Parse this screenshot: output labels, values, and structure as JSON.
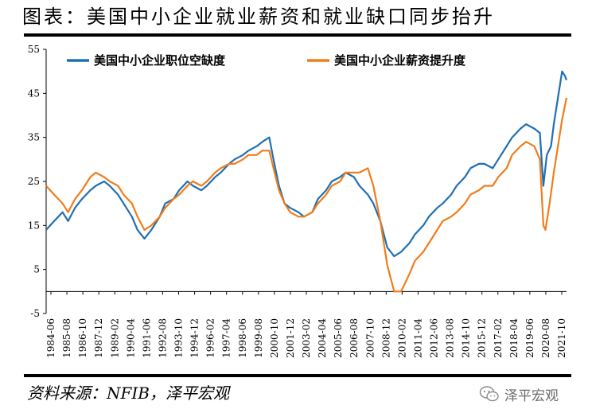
{
  "title": "图表：美国中小企业就业薪资和就业缺口同步抬升",
  "source": "资料来源：NFIB，泽平宏观",
  "watermark": {
    "text": "泽平宏观",
    "icon": "wechat-icon"
  },
  "colors": {
    "blue": "#1f6fb4",
    "orange": "#f07d1a"
  },
  "chart_data": {
    "type": "line",
    "title": "",
    "xlabel": "",
    "ylabel": "",
    "ylim": [
      -5,
      55
    ],
    "yticks": [
      -5,
      5,
      15,
      25,
      35,
      45,
      55
    ],
    "xlim": [
      1984.42,
      2021.92
    ],
    "grid": false,
    "legend": "top",
    "xtick_labels": [
      "1984-06",
      "1985-08",
      "1986-10",
      "1987-12",
      "1989-02",
      "1990-04",
      "1991-06",
      "1992-08",
      "1993-10",
      "1994-12",
      "1996-02",
      "1997-04",
      "1998-06",
      "1999-08",
      "2000-10",
      "2001-12",
      "2003-02",
      "2004-04",
      "2005-06",
      "2006-08",
      "2007-10",
      "2008-12",
      "2010-02",
      "2011-04",
      "2012-06",
      "2013-08",
      "2014-10",
      "2015-12",
      "2017-02",
      "2018-04",
      "2019-06",
      "2020-08",
      "2021-10"
    ],
    "series": [
      {
        "name": "美国中小企业职位空缺度",
        "color": "#1f6fb4",
        "points": [
          [
            1984.42,
            14
          ],
          [
            1985.0,
            16
          ],
          [
            1985.6,
            18
          ],
          [
            1986.0,
            16
          ],
          [
            1986.5,
            19
          ],
          [
            1987.0,
            21
          ],
          [
            1987.6,
            23
          ],
          [
            1988.0,
            24
          ],
          [
            1988.6,
            25
          ],
          [
            1989.0,
            24
          ],
          [
            1989.6,
            22
          ],
          [
            1990.0,
            20
          ],
          [
            1990.6,
            17
          ],
          [
            1991.0,
            14
          ],
          [
            1991.5,
            12
          ],
          [
            1992.0,
            14
          ],
          [
            1992.6,
            17
          ],
          [
            1993.0,
            20
          ],
          [
            1993.6,
            21
          ],
          [
            1994.0,
            23
          ],
          [
            1994.6,
            25
          ],
          [
            1995.0,
            24
          ],
          [
            1995.6,
            23
          ],
          [
            1996.0,
            24
          ],
          [
            1996.6,
            26
          ],
          [
            1997.0,
            27
          ],
          [
            1997.6,
            29
          ],
          [
            1998.0,
            30
          ],
          [
            1998.6,
            31
          ],
          [
            1999.0,
            32
          ],
          [
            1999.6,
            33
          ],
          [
            2000.0,
            34
          ],
          [
            2000.5,
            35
          ],
          [
            2000.8,
            30
          ],
          [
            2001.2,
            24
          ],
          [
            2001.6,
            20
          ],
          [
            2002.0,
            19
          ],
          [
            2002.6,
            18
          ],
          [
            2003.0,
            17
          ],
          [
            2003.6,
            18
          ],
          [
            2004.0,
            21
          ],
          [
            2004.6,
            23
          ],
          [
            2005.0,
            25
          ],
          [
            2005.6,
            26
          ],
          [
            2006.0,
            27
          ],
          [
            2006.6,
            26
          ],
          [
            2007.0,
            24
          ],
          [
            2007.6,
            22
          ],
          [
            2008.0,
            20
          ],
          [
            2008.5,
            16
          ],
          [
            2009.0,
            10
          ],
          [
            2009.5,
            8
          ],
          [
            2010.0,
            9
          ],
          [
            2010.6,
            11
          ],
          [
            2011.0,
            13
          ],
          [
            2011.6,
            15
          ],
          [
            2012.0,
            17
          ],
          [
            2012.6,
            19
          ],
          [
            2013.0,
            20
          ],
          [
            2013.6,
            22
          ],
          [
            2014.0,
            24
          ],
          [
            2014.6,
            26
          ],
          [
            2015.0,
            28
          ],
          [
            2015.6,
            29
          ],
          [
            2016.0,
            29
          ],
          [
            2016.6,
            28
          ],
          [
            2017.0,
            30
          ],
          [
            2017.6,
            33
          ],
          [
            2018.0,
            35
          ],
          [
            2018.6,
            37
          ],
          [
            2019.0,
            38
          ],
          [
            2019.6,
            37
          ],
          [
            2020.0,
            36
          ],
          [
            2020.25,
            24
          ],
          [
            2020.5,
            31
          ],
          [
            2020.8,
            33
          ],
          [
            2021.0,
            38
          ],
          [
            2021.3,
            44
          ],
          [
            2021.6,
            50
          ],
          [
            2021.8,
            49
          ],
          [
            2021.92,
            48
          ]
        ]
      },
      {
        "name": "美国中小企业薪资提升度",
        "color": "#f07d1a",
        "points": [
          [
            1984.42,
            24
          ],
          [
            1985.0,
            22
          ],
          [
            1985.6,
            20
          ],
          [
            1986.0,
            18
          ],
          [
            1986.5,
            21
          ],
          [
            1987.0,
            23
          ],
          [
            1987.6,
            26
          ],
          [
            1988.0,
            27
          ],
          [
            1988.6,
            26
          ],
          [
            1989.0,
            25
          ],
          [
            1989.6,
            24
          ],
          [
            1990.0,
            22
          ],
          [
            1990.6,
            20
          ],
          [
            1991.0,
            17
          ],
          [
            1991.5,
            14
          ],
          [
            1992.0,
            15
          ],
          [
            1992.6,
            17
          ],
          [
            1993.0,
            19
          ],
          [
            1993.6,
            21
          ],
          [
            1994.0,
            22
          ],
          [
            1994.6,
            24
          ],
          [
            1995.0,
            25
          ],
          [
            1995.6,
            24
          ],
          [
            1996.0,
            25
          ],
          [
            1996.6,
            27
          ],
          [
            1997.0,
            28
          ],
          [
            1997.6,
            29
          ],
          [
            1998.0,
            29
          ],
          [
            1998.6,
            30
          ],
          [
            1999.0,
            31
          ],
          [
            1999.6,
            31
          ],
          [
            2000.0,
            32
          ],
          [
            2000.5,
            32
          ],
          [
            2000.8,
            28
          ],
          [
            2001.2,
            23
          ],
          [
            2001.6,
            20
          ],
          [
            2002.0,
            18
          ],
          [
            2002.6,
            17
          ],
          [
            2003.0,
            17
          ],
          [
            2003.6,
            18
          ],
          [
            2004.0,
            20
          ],
          [
            2004.6,
            22
          ],
          [
            2005.0,
            24
          ],
          [
            2005.6,
            25
          ],
          [
            2006.0,
            27
          ],
          [
            2006.6,
            27
          ],
          [
            2007.0,
            27
          ],
          [
            2007.6,
            28
          ],
          [
            2008.0,
            24
          ],
          [
            2008.5,
            16
          ],
          [
            2009.0,
            6
          ],
          [
            2009.5,
            0
          ],
          [
            2010.0,
            0
          ],
          [
            2010.6,
            4
          ],
          [
            2011.0,
            7
          ],
          [
            2011.6,
            9
          ],
          [
            2012.0,
            11
          ],
          [
            2012.6,
            14
          ],
          [
            2013.0,
            16
          ],
          [
            2013.6,
            17
          ],
          [
            2014.0,
            18
          ],
          [
            2014.6,
            20
          ],
          [
            2015.0,
            22
          ],
          [
            2015.6,
            23
          ],
          [
            2016.0,
            24
          ],
          [
            2016.6,
            24
          ],
          [
            2017.0,
            26
          ],
          [
            2017.6,
            28
          ],
          [
            2018.0,
            31
          ],
          [
            2018.6,
            33
          ],
          [
            2019.0,
            34
          ],
          [
            2019.6,
            33
          ],
          [
            2020.0,
            30
          ],
          [
            2020.25,
            15
          ],
          [
            2020.4,
            14
          ],
          [
            2020.7,
            20
          ],
          [
            2021.0,
            27
          ],
          [
            2021.3,
            33
          ],
          [
            2021.6,
            39
          ],
          [
            2021.92,
            44
          ]
        ]
      }
    ]
  }
}
